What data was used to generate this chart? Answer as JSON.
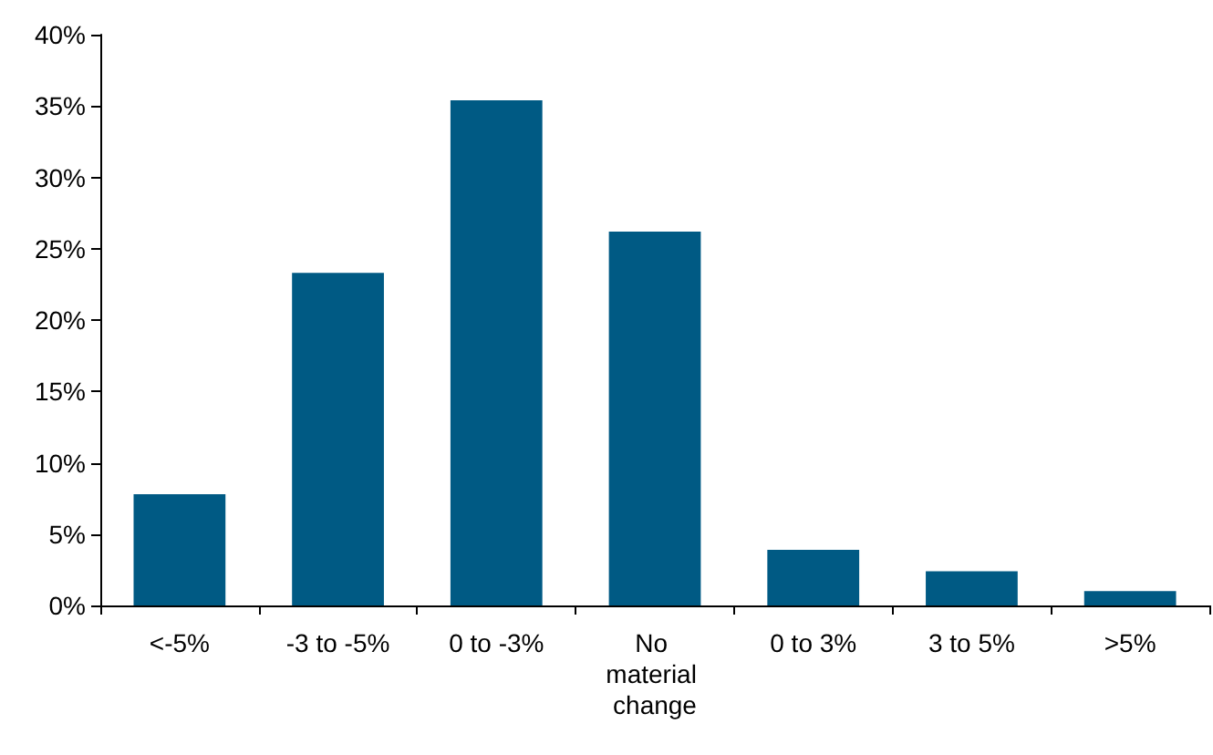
{
  "chart_data": {
    "type": "bar",
    "categories": [
      "<-5%",
      "-3 to -5%",
      "0 to -3%",
      "No material change",
      "0 to 3%",
      "3 to 5%",
      ">5%"
    ],
    "values": [
      7.8,
      23.3,
      35.4,
      26.2,
      3.9,
      2.4,
      1.0
    ],
    "color": "#005a84",
    "ylim": [
      0,
      40
    ],
    "yticks": [
      {
        "value": 0,
        "label": "0%"
      },
      {
        "value": 5,
        "label": "5%"
      },
      {
        "value": 10,
        "label": "10%"
      },
      {
        "value": 15,
        "label": "15%"
      },
      {
        "value": 20,
        "label": "20%"
      },
      {
        "value": 25,
        "label": "25%"
      },
      {
        "value": 30,
        "label": "30%"
      },
      {
        "value": 35,
        "label": "35%"
      },
      {
        "value": 40,
        "label": "40%"
      }
    ],
    "grid": false
  }
}
